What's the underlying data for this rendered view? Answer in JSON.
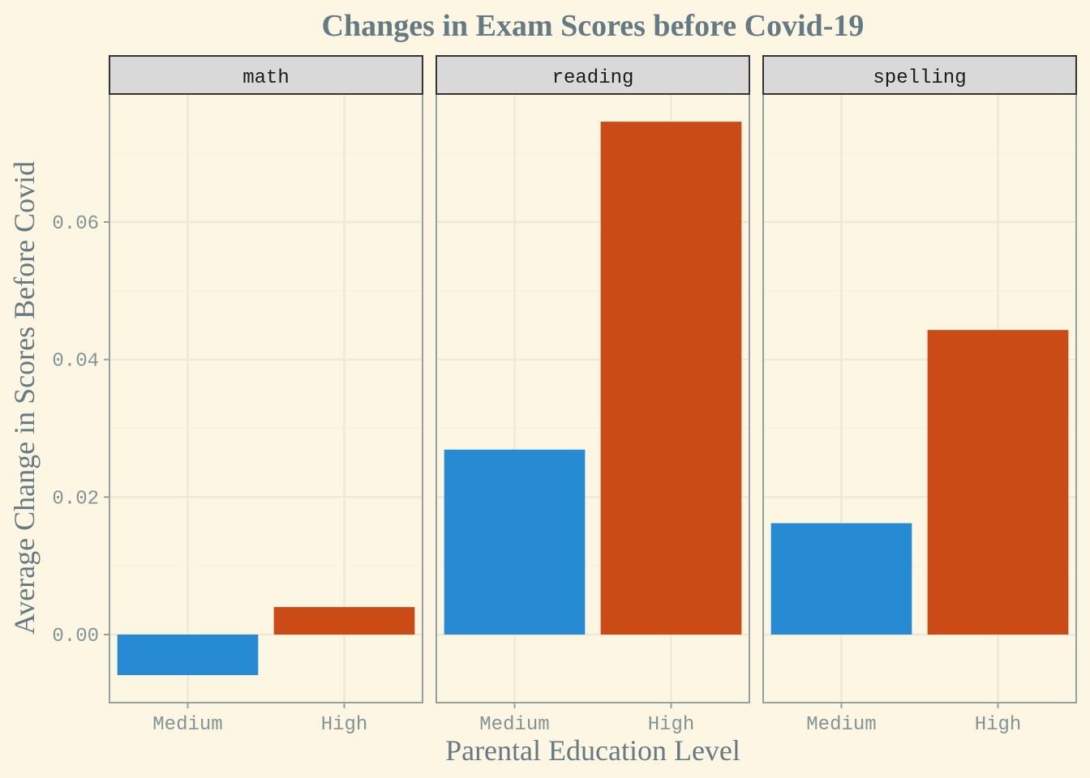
{
  "chart_data": {
    "type": "bar",
    "title": "Changes in Exam Scores before Covid-19",
    "xlabel": "Parental Education Level",
    "ylabel": "Average Change in Scores Before Covid",
    "categories": [
      "Medium",
      "High"
    ],
    "ylim": [
      -0.0098,
      0.0785
    ],
    "yticks": [
      0.0,
      0.02,
      0.04,
      0.06
    ],
    "ytick_labels": [
      "0.00",
      "0.02",
      "0.04",
      "0.06"
    ],
    "grid": true,
    "legend": "none",
    "colors": {
      "Medium": "#268bd2",
      "High": "#cb4b16"
    },
    "facets": [
      {
        "name": "math",
        "values": [
          -0.0059,
          0.004
        ]
      },
      {
        "name": "reading",
        "values": [
          0.0269,
          0.0746
        ]
      },
      {
        "name": "spelling",
        "values": [
          0.0162,
          0.0443
        ]
      }
    ]
  },
  "theme": {
    "background": "#fdf6e3",
    "panel_border": "#93a1a1",
    "grid_major": "#eee8d5",
    "grid_minor": "#f5efdc",
    "strip_fill": "#d9d9d9",
    "strip_border": "#333333"
  }
}
